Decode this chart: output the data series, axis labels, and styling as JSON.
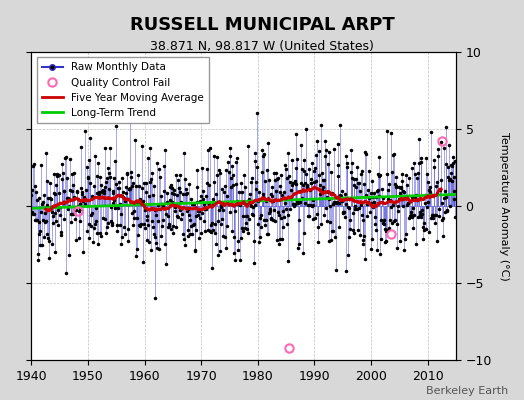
{
  "title": "RUSSELL MUNICIPAL ARPT",
  "subtitle": "38.871 N, 98.817 W (United States)",
  "ylabel": "Temperature Anomaly (°C)",
  "watermark": "Berkeley Earth",
  "xlim": [
    1940,
    2015
  ],
  "ylim": [
    -10,
    10
  ],
  "xticks": [
    1940,
    1950,
    1960,
    1970,
    1980,
    1990,
    2000,
    2010
  ],
  "yticks": [
    -10,
    -5,
    0,
    5,
    10
  ],
  "background_color": "#d8d8d8",
  "plot_bg_color": "#ffffff",
  "grid_color": "#c0c0c0",
  "raw_line_color": "#3333cc",
  "raw_marker_color": "#000000",
  "qc_fail_color": "#ff69b4",
  "moving_avg_color": "#cc0000",
  "trend_color": "#00cc00",
  "seed": 42,
  "n_years": 75,
  "start_year": 1940,
  "trend_slope": 0.012,
  "trend_intercept": -0.15,
  "qc_fail_points": [
    [
      1985.5,
      -9.2
    ],
    [
      2012.5,
      4.2
    ],
    [
      1948.2,
      -0.3
    ],
    [
      2003.5,
      -1.8
    ]
  ],
  "legend_loc": "upper left",
  "title_fontsize": 13,
  "subtitle_fontsize": 9,
  "tick_fontsize": 9,
  "legend_fontsize": 7.5,
  "ylabel_fontsize": 8
}
